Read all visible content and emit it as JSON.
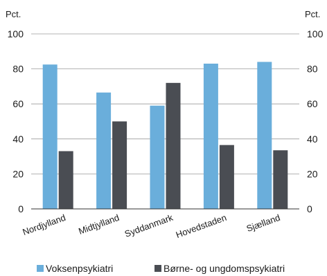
{
  "chart_data": {
    "type": "bar",
    "categories": [
      "Nordjylland",
      "Midtjylland",
      "Syddanmark",
      "Hovedstaden",
      "Sjælland"
    ],
    "series": [
      {
        "name": "Voksenpsykiatri",
        "values": [
          82.5,
          66.5,
          59,
          83,
          84
        ],
        "color": "#6aaedb"
      },
      {
        "name": "Børne- og ungdomspsykiatri",
        "values": [
          33,
          50,
          72,
          36.5,
          33.5
        ],
        "color": "#4a4d53"
      }
    ],
    "ylim": [
      0,
      100
    ],
    "yticks": [
      0,
      20,
      40,
      60,
      80,
      100
    ],
    "ylabel_left": "Pct.",
    "ylabel_right": "Pct.",
    "grid": true,
    "legend_position": "bottom"
  }
}
